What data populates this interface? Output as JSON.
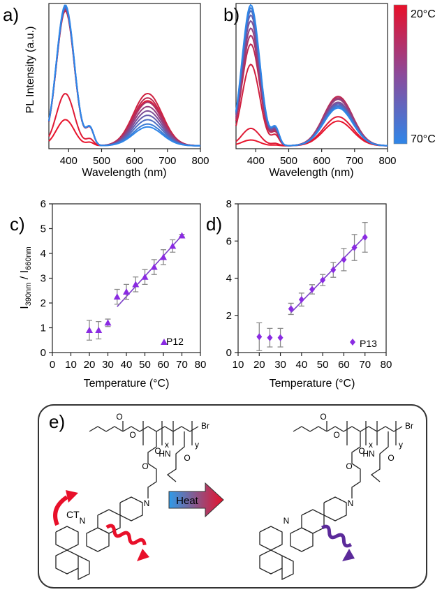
{
  "panel_labels": [
    "a)",
    "b)",
    "c)",
    "d)",
    "e)"
  ],
  "colorbar": {
    "top_label": "20°C",
    "bottom_label": "70°C",
    "colors": [
      "#e8102a",
      "#8c4a9a",
      "#2f86e8"
    ]
  },
  "scheme": {
    "ct_label": "CT",
    "heat_label": "Heat",
    "group_labels": [
      "Br",
      "Br"
    ],
    "subscript_x": [
      "x",
      "x"
    ],
    "subscript_y": [
      "y",
      "y"
    ],
    "heteroatoms": [
      "O",
      "O",
      "O",
      "O",
      "N",
      "N",
      "HN",
      "O",
      "O",
      "O",
      "O",
      "O",
      "N",
      "N",
      "HN",
      "O"
    ],
    "left_emission_color": "#e8102a",
    "right_emission_color": "#5b2a9a"
  },
  "chart_data": [
    {
      "type": "line",
      "panel": "a)",
      "xlabel": "Wavelength (nm)",
      "ylabel": "PL Intensity (a.u.)",
      "xlim": [
        340,
        800
      ],
      "ylim": [
        0,
        1
      ],
      "x_ticks": [
        "400",
        "500",
        "600",
        "700",
        "800"
      ],
      "band_centers_nm": [
        390,
        640
      ],
      "series": [
        {
          "temperature_c": 20,
          "color": "#e8132b",
          "uv_peak": 0.18,
          "red_peak": 0.3
        },
        {
          "temperature_c": 25,
          "color": "#df1a35",
          "uv_peak": 0.36,
          "red_peak": 0.31
        },
        {
          "temperature_c": 30,
          "color": "#d0203f",
          "uv_peak": 0.93,
          "red_peak": 0.36
        },
        {
          "temperature_c": 35,
          "color": "#bd2a52",
          "uv_peak": 0.94,
          "red_peak": 0.33
        },
        {
          "temperature_c": 40,
          "color": "#a8346a",
          "uv_peak": 0.94,
          "red_peak": 0.3
        },
        {
          "temperature_c": 45,
          "color": "#93407f",
          "uv_peak": 0.95,
          "red_peak": 0.27
        },
        {
          "temperature_c": 50,
          "color": "#7d4e96",
          "uv_peak": 0.95,
          "red_peak": 0.24
        },
        {
          "temperature_c": 55,
          "color": "#655dad",
          "uv_peak": 0.95,
          "red_peak": 0.21
        },
        {
          "temperature_c": 60,
          "color": "#4d6ec3",
          "uv_peak": 0.96,
          "red_peak": 0.18
        },
        {
          "temperature_c": 65,
          "color": "#3a7cd6",
          "uv_peak": 0.96,
          "red_peak": 0.15
        },
        {
          "temperature_c": 70,
          "color": "#2f86e8",
          "uv_peak": 0.97,
          "red_peak": 0.13
        }
      ]
    },
    {
      "type": "line",
      "panel": "b)",
      "xlabel": "Wavelength (nm)",
      "xlim": [
        340,
        800
      ],
      "ylim": [
        0,
        1
      ],
      "x_ticks": [
        "400",
        "500",
        "600",
        "700",
        "800"
      ],
      "band_centers_nm": [
        385,
        650
      ],
      "series": [
        {
          "temperature_c": 20,
          "color": "#e8132b",
          "uv_peak": 0.04,
          "red_peak": 0.17
        },
        {
          "temperature_c": 25,
          "color": "#df1a35",
          "uv_peak": 0.12,
          "red_peak": 0.2
        },
        {
          "temperature_c": 30,
          "color": "#d0203f",
          "uv_peak": 0.56,
          "red_peak": 0.32
        },
        {
          "temperature_c": 35,
          "color": "#bd2a52",
          "uv_peak": 0.7,
          "red_peak": 0.34
        },
        {
          "temperature_c": 40,
          "color": "#a8346a",
          "uv_peak": 0.76,
          "red_peak": 0.33
        },
        {
          "temperature_c": 45,
          "color": "#93407f",
          "uv_peak": 0.81,
          "red_peak": 0.32
        },
        {
          "temperature_c": 50,
          "color": "#7d4e96",
          "uv_peak": 0.86,
          "red_peak": 0.3
        },
        {
          "temperature_c": 55,
          "color": "#655dad",
          "uv_peak": 0.9,
          "red_peak": 0.29
        },
        {
          "temperature_c": 60,
          "color": "#4d6ec3",
          "uv_peak": 0.93,
          "red_peak": 0.28
        },
        {
          "temperature_c": 65,
          "color": "#3a7cd6",
          "uv_peak": 0.95,
          "red_peak": 0.27
        },
        {
          "temperature_c": 70,
          "color": "#2f86e8",
          "uv_peak": 0.97,
          "red_peak": 0.26
        }
      ]
    },
    {
      "type": "scatter",
      "panel": "c)",
      "xlabel": "Temperature (°C)",
      "ylabel_main": "I",
      "ylabel_sub1": "390nm",
      "ylabel_mid": " / I",
      "ylabel_sub2": "660nm",
      "xlim": [
        0,
        80
      ],
      "ylim": [
        0,
        6
      ],
      "x_ticks": [
        "0",
        "10",
        "20",
        "30",
        "40",
        "50",
        "60",
        "70",
        "80"
      ],
      "y_ticks": [
        "0",
        "1",
        "2",
        "3",
        "4",
        "5",
        "6"
      ],
      "legend": "P12",
      "legend_position": "bottom-right",
      "marker": "triangle",
      "marker_color": "#8a2be2",
      "fit_color": "#7b3fc8",
      "fit": {
        "x": [
          35,
          70
        ],
        "y": [
          1.85,
          4.72
        ]
      },
      "points": [
        {
          "x": 20,
          "y": 0.9,
          "err": 0.4
        },
        {
          "x": 25,
          "y": 0.9,
          "err": 0.35
        },
        {
          "x": 30,
          "y": 1.2,
          "err": 0.15
        },
        {
          "x": 35,
          "y": 2.25,
          "err": 0.3
        },
        {
          "x": 40,
          "y": 2.45,
          "err": 0.3
        },
        {
          "x": 45,
          "y": 2.75,
          "err": 0.3
        },
        {
          "x": 50,
          "y": 3.05,
          "err": 0.3
        },
        {
          "x": 55,
          "y": 3.45,
          "err": 0.3
        },
        {
          "x": 60,
          "y": 3.85,
          "err": 0.3
        },
        {
          "x": 65,
          "y": 4.3,
          "err": 0.25
        },
        {
          "x": 70,
          "y": 4.72,
          "err": 0.05
        }
      ]
    },
    {
      "type": "scatter",
      "panel": "d)",
      "xlabel": "Temperature (°C)",
      "xlim": [
        10,
        80
      ],
      "ylim": [
        0,
        8
      ],
      "x_ticks": [
        "10",
        "20",
        "30",
        "40",
        "50",
        "60",
        "70",
        "80"
      ],
      "y_ticks": [
        "0",
        "2",
        "4",
        "6",
        "8"
      ],
      "legend": "P13",
      "legend_position": "bottom-right",
      "marker": "diamond",
      "marker_color": "#8a2be2",
      "fit_color": "#7b3fc8",
      "fit": {
        "x": [
          35,
          70
        ],
        "y": [
          2.15,
          6.25
        ]
      },
      "points": [
        {
          "x": 20,
          "y": 0.85,
          "err": 0.75
        },
        {
          "x": 25,
          "y": 0.8,
          "err": 0.5
        },
        {
          "x": 30,
          "y": 0.8,
          "err": 0.5
        },
        {
          "x": 35,
          "y": 2.35,
          "err": 0.3
        },
        {
          "x": 40,
          "y": 2.85,
          "err": 0.35
        },
        {
          "x": 45,
          "y": 3.4,
          "err": 0.25
        },
        {
          "x": 50,
          "y": 3.9,
          "err": 0.3
        },
        {
          "x": 55,
          "y": 4.45,
          "err": 0.4
        },
        {
          "x": 60,
          "y": 5.0,
          "err": 0.6
        },
        {
          "x": 65,
          "y": 5.65,
          "err": 0.7
        },
        {
          "x": 70,
          "y": 6.2,
          "err": 0.8
        }
      ]
    }
  ]
}
